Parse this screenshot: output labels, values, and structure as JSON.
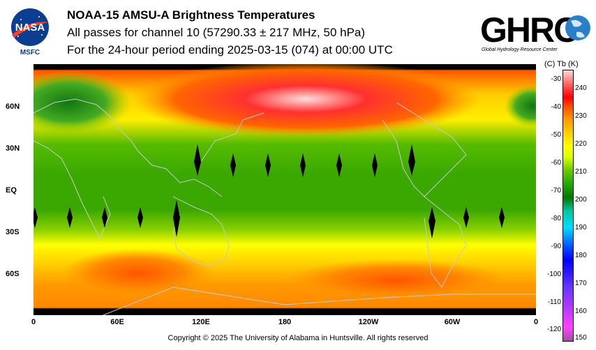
{
  "header": {
    "title": "NOAA-15 AMSU-A Brightness Temperatures",
    "subtitle": "All passes for channel 10 (57290.33 ± 217 MHz, 50 hPa)",
    "period": "For the 24-hour period ending 2025-03-15 (074) at 00:00 UTC"
  },
  "logos": {
    "nasa_text": "NASA",
    "msfc_text": "MSFC",
    "ghrc_text": "GHRC",
    "ghrc_caption": "Global Hydrology Resource Center"
  },
  "map_axes": {
    "x_ticks": [
      "0",
      "60E",
      "120E",
      "180",
      "120W",
      "60W",
      "0"
    ],
    "y_ticks": [
      "60N",
      "30N",
      "EQ",
      "30S",
      "60S"
    ]
  },
  "colorbar": {
    "header": "(C)  Tb  (K)",
    "celsius_ticks": [
      "-30",
      "-40",
      "-50",
      "-60",
      "-70",
      "-80",
      "-90",
      "-100",
      "-110",
      "-120"
    ],
    "kelvin_ticks": [
      "240",
      "230",
      "220",
      "210",
      "200",
      "190",
      "180",
      "170",
      "160",
      "150"
    ],
    "colors": [
      "#9f4f9f",
      "#ff40ff",
      "#6633ff",
      "#0000ff",
      "#0066ff",
      "#00ddff",
      "#00c8a0",
      "#007700",
      "#22aa00",
      "#66cc00",
      "#ddff00",
      "#ffff00",
      "#ffcc00",
      "#ff9900",
      "#ff5500",
      "#ff0000",
      "#ff6666",
      "#ffdddd"
    ]
  },
  "chart_data": {
    "type": "heatmap",
    "title": "NOAA-15 AMSU-A Brightness Temperatures",
    "x_range_lon": [
      0,
      360
    ],
    "y_range_lat": [
      -90,
      90
    ],
    "value_range_K": [
      150,
      245
    ],
    "colorbar_label": "Tb (K)"
  },
  "footer": {
    "copyright": "Copyright © 2025 The University of Alabama in Huntsville.  All rights reserved"
  }
}
